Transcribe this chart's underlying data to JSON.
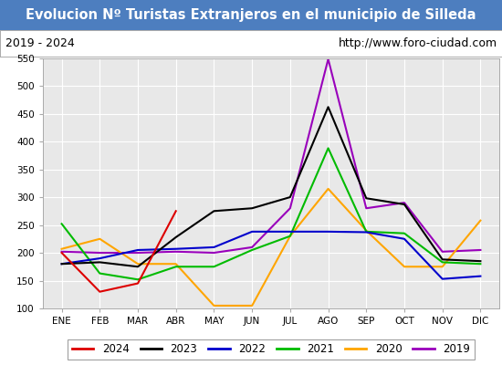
{
  "title": "Evolucion Nº Turistas Extranjeros en el municipio de Silleda",
  "subtitle_left": "2019 - 2024",
  "subtitle_right": "http://www.foro-ciudad.com",
  "title_bg_color": "#4d7ebf",
  "title_fg_color": "#ffffff",
  "plot_bg_color": "#e8e8e8",
  "grid_color": "#ffffff",
  "months": [
    "ENE",
    "FEB",
    "MAR",
    "ABR",
    "MAY",
    "JUN",
    "JUL",
    "AGO",
    "SEP",
    "OCT",
    "NOV",
    "DIC"
  ],
  "ylim": [
    100,
    550
  ],
  "yticks": [
    100,
    150,
    200,
    250,
    300,
    350,
    400,
    450,
    500,
    550
  ],
  "series": {
    "2024": {
      "color": "#dd0000",
      "data": [
        200,
        130,
        145,
        275,
        null,
        null,
        null,
        null,
        null,
        null,
        null,
        null
      ]
    },
    "2023": {
      "color": "#000000",
      "data": [
        180,
        183,
        175,
        228,
        275,
        280,
        300,
        462,
        298,
        287,
        188,
        185
      ]
    },
    "2022": {
      "color": "#0000cc",
      "data": [
        180,
        190,
        205,
        207,
        210,
        238,
        238,
        238,
        237,
        225,
        153,
        158
      ]
    },
    "2021": {
      "color": "#00bb00",
      "data": [
        252,
        163,
        152,
        175,
        175,
        205,
        230,
        388,
        238,
        235,
        183,
        180
      ]
    },
    "2020": {
      "color": "#ffa500",
      "data": [
        207,
        225,
        180,
        180,
        105,
        105,
        230,
        315,
        240,
        175,
        175,
        258
      ]
    },
    "2019": {
      "color": "#9900bb",
      "data": [
        202,
        200,
        200,
        202,
        200,
        210,
        280,
        548,
        280,
        290,
        202,
        205
      ]
    }
  },
  "legend_order": [
    "2024",
    "2023",
    "2022",
    "2021",
    "2020",
    "2019"
  ]
}
